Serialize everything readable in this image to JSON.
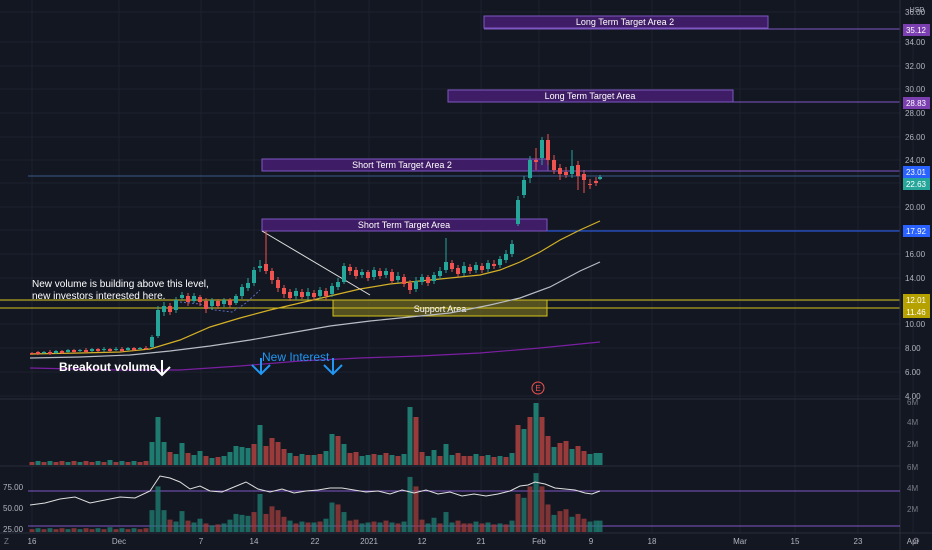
{
  "currency": "USD",
  "price_axis": {
    "ticks": [
      "36.00",
      "34.00",
      "32.00",
      "30.00",
      "28.00",
      "26.00",
      "24.00",
      "22.00",
      "20.00",
      "18.00",
      "16.00",
      "14.00",
      "12.00",
      "10.00",
      "8.00",
      "6.00",
      "4.00"
    ],
    "badges": [
      {
        "text": "35.12",
        "color": "#7b3fb0"
      },
      {
        "text": "28.83",
        "color": "#7b3fb0"
      },
      {
        "text": "23.01",
        "color": "#2962ff"
      },
      {
        "text": "22.63",
        "color": "#26a69a"
      },
      {
        "text": "17.92",
        "color": "#2962ff"
      },
      {
        "text": "12.01",
        "color": "#b5a100"
      },
      {
        "text": "11.46",
        "color": "#b5a100"
      }
    ]
  },
  "time_axis": {
    "labels": [
      "16",
      "Dec",
      "7",
      "14",
      "22",
      "2021",
      "12",
      "21",
      "Feb",
      "9",
      "18",
      "Mar",
      "15",
      "23",
      "Apr",
      "9"
    ]
  },
  "annotations": {
    "long_term_2": "Long Term Target Area 2",
    "long_term": "Long Term Target Area",
    "short_term_2": "Short Term Target Area 2",
    "short_term": "Short Term Target Area",
    "support": "Support Area",
    "volume_note_line1": "New volume is building above this level,",
    "volume_note_line2": "new investors interested here.",
    "breakout": "Breakout volume",
    "new_interest": "New Interest",
    "earnings_marker": "E"
  },
  "volume_axis": {
    "ticks": [
      "6M",
      "4M",
      "2M"
    ]
  },
  "indicator_axis": {
    "left_ticks": [
      "75.00",
      "50.00",
      "25.00"
    ],
    "right_ticks": [
      "6M",
      "4M",
      "2M"
    ]
  },
  "colors": {
    "bull": "#26a69a",
    "bear": "#ef5350",
    "bg": "#131722",
    "target_zone": "#4a1f7a",
    "support_zone": "#b5a100"
  }
}
